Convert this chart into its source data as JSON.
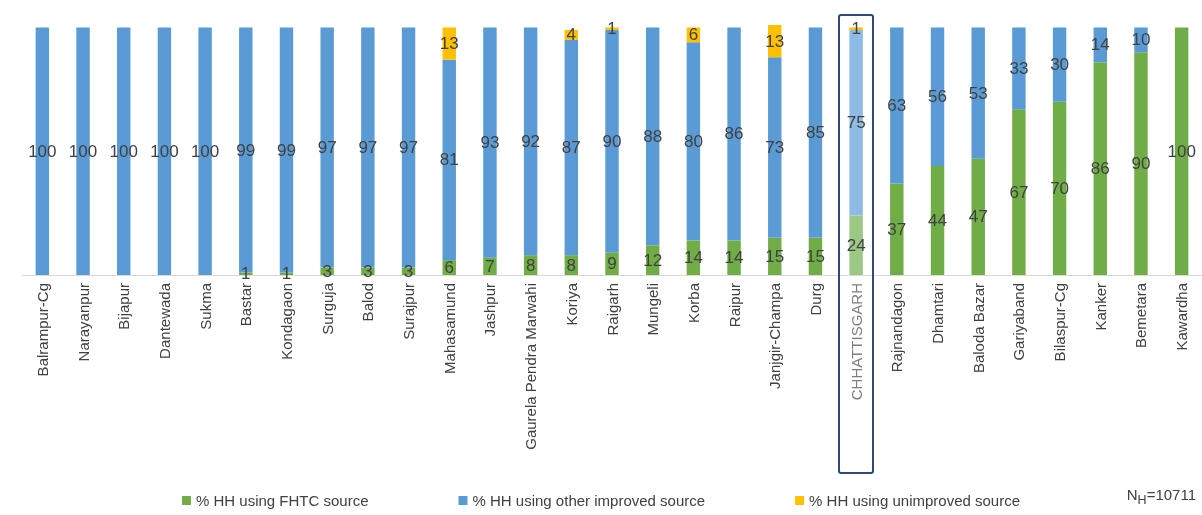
{
  "chart_data": {
    "type": "bar",
    "stacked": true,
    "data_labels": true,
    "legend": "bottom",
    "categories": [
      "Balrampur-Cg",
      "Narayanpur",
      "Bijapur",
      "Dantewada",
      "Sukma",
      "Bastar",
      "Kondagaon",
      "Surguja",
      "Balod",
      "Surajpur",
      "Mahasamund",
      "Jashpur",
      "Gaurela Pendra Marwahi",
      "Koriya",
      "Raigarh",
      "Mungeli",
      "Korba",
      "Raipur",
      "Janjgir-Champa",
      "Durg",
      "CHHATTISGARH",
      "Rajnandagon",
      "Dhamtari",
      "Baloda Bazar",
      "Gariyaband",
      "Bilaspur-Cg",
      "Kanker",
      "Bemetara",
      "Kawardha"
    ],
    "series": [
      {
        "name": "% HH using FHTC source",
        "color": "#70ad47",
        "colors": [
          "#70ad47",
          "#70ad47",
          "#70ad47",
          "#70ad47",
          "#70ad47",
          "#70ad47",
          "#70ad47",
          "#70ad47",
          "#70ad47",
          "#70ad47",
          "#70ad47",
          "#70ad47",
          "#70ad47",
          "#70ad47",
          "#70ad47",
          "#70ad47",
          "#70ad47",
          "#70ad47",
          "#70ad47",
          "#70ad47",
          "#9cc784",
          "#70ad47",
          "#70ad47",
          "#70ad47",
          "#70ad47",
          "#70ad47",
          "#70ad47",
          "#70ad47",
          "#70ad47"
        ],
        "values": [
          null,
          null,
          null,
          null,
          null,
          1,
          1,
          3,
          3,
          3,
          6,
          7,
          8,
          8,
          9,
          12,
          14,
          14,
          15,
          15,
          24,
          37,
          44,
          47,
          67,
          70,
          86,
          90,
          100
        ]
      },
      {
        "name": "% HH using other improved source",
        "color": "#5b9bd5",
        "colors": [
          "#5b9bd5",
          "#5b9bd5",
          "#5b9bd5",
          "#5b9bd5",
          "#5b9bd5",
          "#5b9bd5",
          "#5b9bd5",
          "#5b9bd5",
          "#5b9bd5",
          "#5b9bd5",
          "#5b9bd5",
          "#5b9bd5",
          "#5b9bd5",
          "#5b9bd5",
          "#5b9bd5",
          "#5b9bd5",
          "#5b9bd5",
          "#5b9bd5",
          "#5b9bd5",
          "#5b9bd5",
          "#8dbbe6",
          "#5b9bd5",
          "#5b9bd5",
          "#5b9bd5",
          "#5b9bd5",
          "#5b9bd5",
          "#5b9bd5",
          "#5b9bd5",
          "#5b9bd5"
        ],
        "values": [
          100,
          100,
          100,
          100,
          100,
          99,
          99,
          97,
          97,
          97,
          81,
          93,
          92,
          87,
          90,
          88,
          80,
          86,
          73,
          85,
          75,
          63,
          56,
          53,
          33,
          30,
          14,
          10,
          null
        ]
      },
      {
        "name": "% HH using unimproved source",
        "color": "#ffc000",
        "values": [
          null,
          null,
          null,
          null,
          null,
          null,
          null,
          null,
          null,
          null,
          13,
          null,
          null,
          4,
          1,
          null,
          6,
          null,
          13,
          null,
          1,
          null,
          null,
          null,
          null,
          null,
          null,
          null,
          null
        ]
      }
    ],
    "annotations": [
      "N$_{H}$=10711"
    ]
  }
}
